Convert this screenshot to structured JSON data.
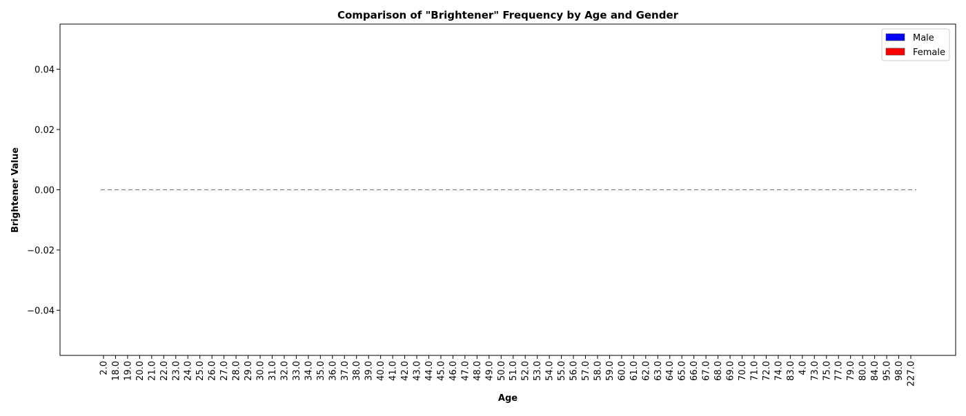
{
  "chart_data": {
    "type": "bar",
    "title": "Comparison of \"Brightener\" Frequency by Age and Gender",
    "xlabel": "Age",
    "ylabel": "Brightener Value",
    "ylim": [
      -0.055,
      0.055
    ],
    "yticks": [
      -0.04,
      -0.02,
      0.0,
      0.02,
      0.04
    ],
    "ytick_labels": [
      "−0.04",
      "−0.02",
      "0.00",
      "0.02",
      "0.04"
    ],
    "categories": [
      "2.0",
      "18.0",
      "19.0",
      "20.0",
      "21.0",
      "22.0",
      "23.0",
      "24.0",
      "25.0",
      "26.0",
      "27.0",
      "28.0",
      "29.0",
      "30.0",
      "31.0",
      "32.0",
      "33.0",
      "34.0",
      "35.0",
      "36.0",
      "37.0",
      "38.0",
      "39.0",
      "40.0",
      "41.0",
      "42.0",
      "43.0",
      "44.0",
      "45.0",
      "46.0",
      "47.0",
      "48.0",
      "49.0",
      "50.0",
      "51.0",
      "52.0",
      "53.0",
      "54.0",
      "55.0",
      "56.0",
      "57.0",
      "58.0",
      "59.0",
      "60.0",
      "61.0",
      "62.0",
      "63.0",
      "64.0",
      "65.0",
      "66.0",
      "67.0",
      "68.0",
      "69.0",
      "70.0",
      "71.0",
      "72.0",
      "74.0",
      "83.0",
      "4.0",
      "73.0",
      "75.0",
      "77.0",
      "79.0",
      "80.0",
      "84.0",
      "95.0",
      "98.0",
      "227.0"
    ],
    "series": [
      {
        "name": "Male",
        "color": "#0000ff",
        "values": [
          0,
          0,
          0,
          0,
          0,
          0,
          0,
          0,
          0,
          0,
          0,
          0,
          0,
          0,
          0,
          0,
          0,
          0,
          0,
          0,
          0,
          0,
          0,
          0,
          0,
          0,
          0,
          0,
          0,
          0,
          0,
          0,
          0,
          0,
          0,
          0,
          0,
          0,
          0,
          0,
          0,
          0,
          0,
          0,
          0,
          0,
          0,
          0,
          0,
          0,
          0,
          0,
          0,
          0,
          0,
          0,
          0,
          0,
          0,
          0,
          0,
          0,
          0,
          0,
          0,
          0,
          0,
          0
        ]
      },
      {
        "name": "Female",
        "color": "#ff0000",
        "values": [
          0,
          0,
          0,
          0,
          0,
          0,
          0,
          0,
          0,
          0,
          0,
          0,
          0,
          0,
          0,
          0,
          0,
          0,
          0,
          0,
          0,
          0,
          0,
          0,
          0,
          0,
          0,
          0,
          0,
          0,
          0,
          0,
          0,
          0,
          0,
          0,
          0,
          0,
          0,
          0,
          0,
          0,
          0,
          0,
          0,
          0,
          0,
          0,
          0,
          0,
          0,
          0,
          0,
          0,
          0,
          0,
          0,
          0,
          0,
          0,
          0,
          0,
          0,
          0,
          0,
          0,
          0,
          0
        ]
      }
    ],
    "zero_line": {
      "value": 0,
      "color": "#808080",
      "style": "dashed"
    },
    "legend": {
      "position": "top-right",
      "entries": [
        "Male",
        "Female"
      ]
    },
    "grid": false
  }
}
